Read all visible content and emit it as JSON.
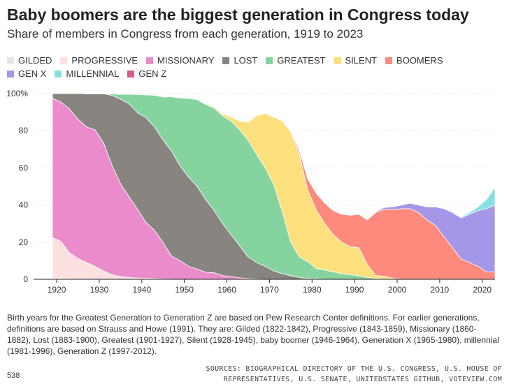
{
  "header": {
    "title": "Baby boomers are the biggest generation in Congress today",
    "subtitle": "Share of members in Congress from each generation, 1919 to 2023"
  },
  "footer": {
    "footnote": "Birth years for the Greatest Generation to Generation Z are based on Pew Research Center definitions. For earlier generations, definitions are based on Strauss and Howe (1991). They are: Gilded (1822-1842), Progressive (1843-1859), Missionary (1860-1882), Lost (1883-1900), Greatest (1901-1927), Silent (1928-1945), baby boomer (1946-1964), Generation X (1965-1980), millennial (1981-1996), Generation Z (1997-2012).",
    "brand": "538",
    "sources": "SOURCES: BIOGRAPHICAL DIRECTORY OF THE U.S. CONGRESS, U.S. HOUSE OF REPRESENTATIVES, U.S. SENATE, UNITEDSTATES GITHUB, VOTEVIEW.COM"
  },
  "chart_data": {
    "type": "area",
    "stacked": true,
    "title": "Baby boomers are the biggest generation in Congress today",
    "subtitle": "Share of members in Congress from each generation, 1919 to 2023",
    "xlabel": "",
    "ylabel": "",
    "xlim": [
      1919,
      2023
    ],
    "ylim": [
      0,
      100
    ],
    "x_ticks": [
      1920,
      1930,
      1940,
      1950,
      1960,
      1970,
      1980,
      1990,
      2000,
      2010,
      2020
    ],
    "y_ticks": [
      0,
      20,
      40,
      60,
      80,
      100
    ],
    "y_tick_labels": [
      "0",
      "20",
      "40",
      "60",
      "80",
      "100%"
    ],
    "grid": true,
    "legend_position": "top",
    "x": [
      1919,
      1921,
      1923,
      1925,
      1927,
      1929,
      1931,
      1933,
      1935,
      1937,
      1939,
      1941,
      1943,
      1945,
      1947,
      1949,
      1951,
      1953,
      1955,
      1957,
      1959,
      1961,
      1963,
      1965,
      1967,
      1969,
      1971,
      1973,
      1975,
      1977,
      1979,
      1981,
      1983,
      1985,
      1987,
      1989,
      1991,
      1993,
      1995,
      1997,
      1999,
      2001,
      2003,
      2005,
      2007,
      2009,
      2011,
      2013,
      2015,
      2017,
      2019,
      2021,
      2023
    ],
    "series": [
      {
        "name": "GILDED",
        "color": "#e6e6e6",
        "values": [
          0.5,
          0.4,
          0.3,
          0.2,
          0.1,
          0,
          0,
          0,
          0,
          0,
          0,
          0,
          0,
          0,
          0,
          0,
          0,
          0,
          0,
          0,
          0,
          0,
          0,
          0,
          0,
          0,
          0,
          0,
          0,
          0,
          0,
          0,
          0,
          0,
          0,
          0,
          0,
          0,
          0,
          0,
          0,
          0,
          0,
          0,
          0,
          0,
          0,
          0,
          0,
          0,
          0,
          0,
          0
        ]
      },
      {
        "name": "PROGRESSIVE",
        "color": "#fde0e0",
        "values": [
          22,
          20,
          14,
          11,
          9,
          7,
          4.5,
          2.5,
          1.5,
          1,
          0.7,
          0.6,
          0.4,
          0.2,
          0.1,
          0,
          0,
          0,
          0,
          0,
          0,
          0,
          0,
          0,
          0,
          0,
          0,
          0,
          0,
          0,
          0,
          0,
          0,
          0,
          0,
          0,
          0,
          0,
          0,
          0,
          0,
          0,
          0,
          0,
          0,
          0,
          0,
          0,
          0,
          0,
          0,
          0,
          0
        ]
      },
      {
        "name": "MISSIONARY",
        "color": "#ea8bcb",
        "values": [
          75,
          75,
          77.5,
          75,
          73,
          73.5,
          69,
          59,
          50,
          43.5,
          37,
          30,
          26,
          19.5,
          12.4,
          10,
          7,
          5.5,
          3.8,
          3.5,
          2,
          1.5,
          0.8,
          0.4,
          0.2,
          0,
          0,
          0,
          0,
          0,
          0,
          0,
          0,
          0,
          0,
          0,
          0,
          0,
          0,
          0,
          0,
          0,
          0,
          0,
          0,
          0,
          0,
          0,
          0,
          0,
          0,
          0,
          0
        ]
      },
      {
        "name": "LOST",
        "color": "#888480",
        "values": [
          2.5,
          4.6,
          8.2,
          13.8,
          17.8,
          19.4,
          26.4,
          37.5,
          45.5,
          50,
          52,
          56.4,
          55.6,
          55.3,
          56.5,
          51,
          48,
          44.5,
          39.2,
          33.5,
          28,
          22.5,
          17.2,
          11.6,
          8.8,
          7,
          4.5,
          3,
          2,
          1,
          0.5,
          0.3,
          0,
          0,
          0,
          0,
          0,
          0,
          0,
          0,
          0,
          0,
          0,
          0,
          0,
          0,
          0,
          0,
          0,
          0,
          0,
          0,
          0
        ]
      },
      {
        "name": "GREATEST",
        "color": "#85d39f",
        "values": [
          0,
          0,
          0,
          0,
          0,
          0,
          0,
          0.8,
          2.7,
          5.2,
          9.8,
          12.3,
          17.1,
          23.2,
          29.3,
          36.6,
          42.4,
          46.7,
          51.1,
          55.1,
          58,
          61.1,
          62.5,
          62.8,
          58.2,
          53,
          46.5,
          33.5,
          18,
          11,
          9,
          5.5,
          5,
          4,
          3,
          2.5,
          2,
          1,
          0.5,
          0.2,
          0,
          0,
          0,
          0,
          0,
          0,
          0,
          0,
          0,
          0,
          0,
          0,
          0
        ]
      },
      {
        "name": "SILENT",
        "color": "#fde07e",
        "values": [
          0,
          0,
          0,
          0,
          0,
          0,
          0,
          0,
          0,
          0,
          0,
          0,
          0,
          0,
          0,
          0.2,
          0.2,
          0.3,
          0.5,
          0.7,
          1.2,
          2.4,
          4.8,
          9.8,
          21,
          29.3,
          36.4,
          48.8,
          59.5,
          55.5,
          38.5,
          31.5,
          25,
          20,
          17,
          15,
          15,
          7,
          1.5,
          1.5,
          0.5,
          0,
          0,
          0,
          0,
          0,
          0,
          0,
          0,
          0,
          0,
          0,
          0
        ]
      },
      {
        "name": "BOOMERS",
        "color": "#fd8a7d",
        "values": [
          0,
          0,
          0,
          0,
          0,
          0,
          0,
          0,
          0,
          0,
          0,
          0,
          0,
          0,
          0,
          0,
          0,
          0,
          0,
          0,
          0,
          0,
          0,
          0,
          0,
          0,
          0,
          0,
          0.5,
          2,
          6,
          9,
          11,
          13,
          15,
          17,
          18,
          24,
          34,
          36,
          37,
          38,
          38,
          36,
          32,
          29,
          23,
          17,
          11,
          9,
          7,
          4,
          4
        ]
      },
      {
        "name": "GEN X",
        "color": "#a596e8",
        "values": [
          0,
          0,
          0,
          0,
          0,
          0,
          0,
          0,
          0,
          0,
          0,
          0,
          0,
          0,
          0,
          0,
          0,
          0,
          0,
          0,
          0,
          0,
          0,
          0,
          0,
          0,
          0,
          0,
          0,
          0,
          0,
          0,
          0,
          0,
          0,
          0,
          0,
          0.2,
          0.5,
          1,
          1.5,
          2,
          3,
          4,
          7,
          10,
          15,
          19,
          22,
          26,
          30,
          34,
          36
        ]
      },
      {
        "name": "MILLENNIAL",
        "color": "#87dfe0",
        "values": [
          0,
          0,
          0,
          0,
          0,
          0,
          0,
          0,
          0,
          0,
          0,
          0,
          0,
          0,
          0,
          0,
          0,
          0,
          0,
          0,
          0,
          0,
          0,
          0,
          0,
          0,
          0,
          0,
          0,
          0,
          0,
          0,
          0,
          0,
          0,
          0,
          0,
          0,
          0,
          0,
          0,
          0,
          0,
          0,
          0,
          0,
          0,
          0,
          0.5,
          1,
          2,
          5,
          9.5
        ]
      },
      {
        "name": "GEN Z",
        "color": "#d65c8f",
        "values": [
          0,
          0,
          0,
          0,
          0,
          0,
          0,
          0,
          0,
          0,
          0,
          0,
          0,
          0,
          0,
          0,
          0,
          0,
          0,
          0,
          0,
          0,
          0,
          0,
          0,
          0,
          0,
          0,
          0,
          0,
          0,
          0,
          0,
          0,
          0,
          0,
          0,
          0,
          0,
          0,
          0,
          0,
          0,
          0,
          0,
          0,
          0,
          0,
          0,
          0,
          0,
          0,
          0.2
        ]
      }
    ]
  }
}
